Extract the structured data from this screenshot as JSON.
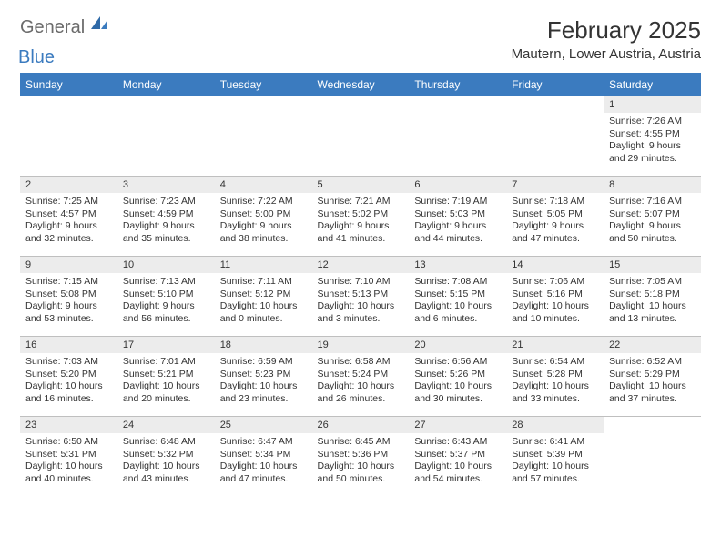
{
  "brand": {
    "general": "General",
    "blue": "Blue"
  },
  "title": "February 2025",
  "location": "Mautern, Lower Austria, Austria",
  "colors": {
    "accent": "#3b7bbf",
    "header_text": "#ffffff",
    "daynum_bg": "#ececec",
    "grid_border": "#bfbfbf",
    "text": "#333333",
    "logo_gray": "#6b6b6b"
  },
  "weekdays": [
    "Sunday",
    "Monday",
    "Tuesday",
    "Wednesday",
    "Thursday",
    "Friday",
    "Saturday"
  ],
  "first_weekday_index": 6,
  "days": [
    {
      "n": 1,
      "sunrise": "7:26 AM",
      "sunset": "4:55 PM",
      "daylight": "9 hours and 29 minutes."
    },
    {
      "n": 2,
      "sunrise": "7:25 AM",
      "sunset": "4:57 PM",
      "daylight": "9 hours and 32 minutes."
    },
    {
      "n": 3,
      "sunrise": "7:23 AM",
      "sunset": "4:59 PM",
      "daylight": "9 hours and 35 minutes."
    },
    {
      "n": 4,
      "sunrise": "7:22 AM",
      "sunset": "5:00 PM",
      "daylight": "9 hours and 38 minutes."
    },
    {
      "n": 5,
      "sunrise": "7:21 AM",
      "sunset": "5:02 PM",
      "daylight": "9 hours and 41 minutes."
    },
    {
      "n": 6,
      "sunrise": "7:19 AM",
      "sunset": "5:03 PM",
      "daylight": "9 hours and 44 minutes."
    },
    {
      "n": 7,
      "sunrise": "7:18 AM",
      "sunset": "5:05 PM",
      "daylight": "9 hours and 47 minutes."
    },
    {
      "n": 8,
      "sunrise": "7:16 AM",
      "sunset": "5:07 PM",
      "daylight": "9 hours and 50 minutes."
    },
    {
      "n": 9,
      "sunrise": "7:15 AM",
      "sunset": "5:08 PM",
      "daylight": "9 hours and 53 minutes."
    },
    {
      "n": 10,
      "sunrise": "7:13 AM",
      "sunset": "5:10 PM",
      "daylight": "9 hours and 56 minutes."
    },
    {
      "n": 11,
      "sunrise": "7:11 AM",
      "sunset": "5:12 PM",
      "daylight": "10 hours and 0 minutes."
    },
    {
      "n": 12,
      "sunrise": "7:10 AM",
      "sunset": "5:13 PM",
      "daylight": "10 hours and 3 minutes."
    },
    {
      "n": 13,
      "sunrise": "7:08 AM",
      "sunset": "5:15 PM",
      "daylight": "10 hours and 6 minutes."
    },
    {
      "n": 14,
      "sunrise": "7:06 AM",
      "sunset": "5:16 PM",
      "daylight": "10 hours and 10 minutes."
    },
    {
      "n": 15,
      "sunrise": "7:05 AM",
      "sunset": "5:18 PM",
      "daylight": "10 hours and 13 minutes."
    },
    {
      "n": 16,
      "sunrise": "7:03 AM",
      "sunset": "5:20 PM",
      "daylight": "10 hours and 16 minutes."
    },
    {
      "n": 17,
      "sunrise": "7:01 AM",
      "sunset": "5:21 PM",
      "daylight": "10 hours and 20 minutes."
    },
    {
      "n": 18,
      "sunrise": "6:59 AM",
      "sunset": "5:23 PM",
      "daylight": "10 hours and 23 minutes."
    },
    {
      "n": 19,
      "sunrise": "6:58 AM",
      "sunset": "5:24 PM",
      "daylight": "10 hours and 26 minutes."
    },
    {
      "n": 20,
      "sunrise": "6:56 AM",
      "sunset": "5:26 PM",
      "daylight": "10 hours and 30 minutes."
    },
    {
      "n": 21,
      "sunrise": "6:54 AM",
      "sunset": "5:28 PM",
      "daylight": "10 hours and 33 minutes."
    },
    {
      "n": 22,
      "sunrise": "6:52 AM",
      "sunset": "5:29 PM",
      "daylight": "10 hours and 37 minutes."
    },
    {
      "n": 23,
      "sunrise": "6:50 AM",
      "sunset": "5:31 PM",
      "daylight": "10 hours and 40 minutes."
    },
    {
      "n": 24,
      "sunrise": "6:48 AM",
      "sunset": "5:32 PM",
      "daylight": "10 hours and 43 minutes."
    },
    {
      "n": 25,
      "sunrise": "6:47 AM",
      "sunset": "5:34 PM",
      "daylight": "10 hours and 47 minutes."
    },
    {
      "n": 26,
      "sunrise": "6:45 AM",
      "sunset": "5:36 PM",
      "daylight": "10 hours and 50 minutes."
    },
    {
      "n": 27,
      "sunrise": "6:43 AM",
      "sunset": "5:37 PM",
      "daylight": "10 hours and 54 minutes."
    },
    {
      "n": 28,
      "sunrise": "6:41 AM",
      "sunset": "5:39 PM",
      "daylight": "10 hours and 57 minutes."
    }
  ],
  "labels": {
    "sunrise": "Sunrise:",
    "sunset": "Sunset:",
    "daylight": "Daylight:"
  }
}
